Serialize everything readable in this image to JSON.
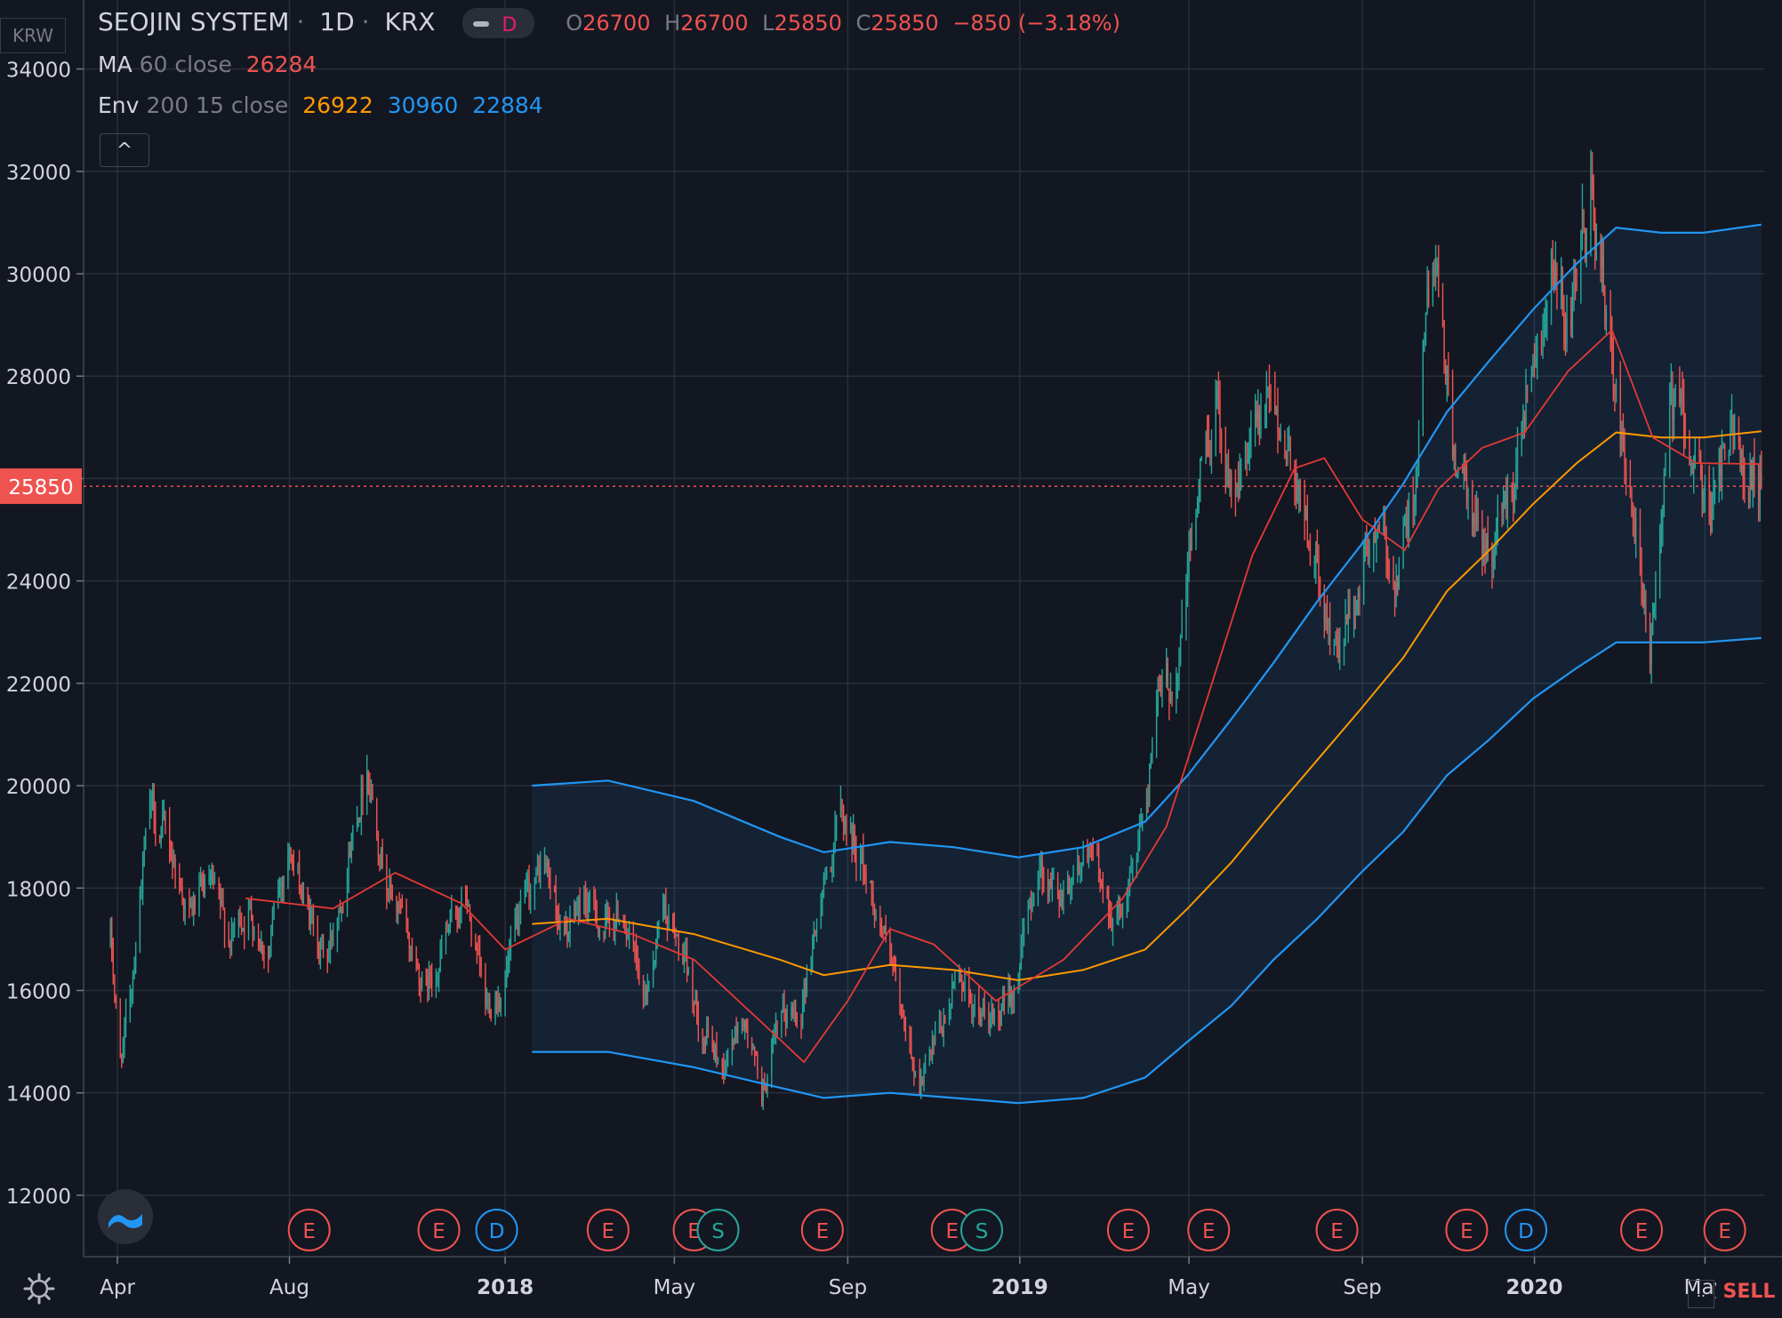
{
  "header": {
    "symbol": "SEOJIN SYSTEM",
    "interval": "1D",
    "exchange": "KRX",
    "sep": "·",
    "pill_label": "D",
    "open_label": "O",
    "open": "26700",
    "high_label": "H",
    "high": "26700",
    "low_label": "L",
    "low": "25850",
    "close_label": "C",
    "close": "25850",
    "change": "−850 (−3.18%)"
  },
  "indicators": {
    "ma_label": "MA",
    "ma_params": "60 close",
    "ma_value": "26284",
    "env_label": "Env",
    "env_params": "200 15 close",
    "env_basis": "26922",
    "env_upper": "30960",
    "env_lower": "22884",
    "collapse_glyph": "^"
  },
  "axis": {
    "currency": "KRW",
    "price_label": "25850",
    "sell_label": "SELL",
    "dots_label": ".."
  },
  "colors": {
    "background": "#131722",
    "grid": "#2a2e39",
    "up": "#26a69a",
    "down": "#ef5350",
    "ma": "#e53935",
    "env_basis": "#ff9800",
    "env_band": "#2196f3",
    "price_line": "#ef5350"
  },
  "icons": [
    "settings-gear-icon",
    "tradingview-logo-icon",
    "chevron-up-icon"
  ],
  "chart_data": {
    "type": "candlestick",
    "ylim": [
      10800,
      35000
    ],
    "yticks": [
      12000,
      14000,
      16000,
      18000,
      20000,
      22000,
      24000,
      26000,
      28000,
      30000,
      32000,
      34000
    ],
    "xlim": [
      "2017-03-08",
      "2020-06-12"
    ],
    "xticks": [
      {
        "label": "Apr",
        "date": "2017-04-01",
        "bold": false
      },
      {
        "label": "Aug",
        "date": "2017-08-01",
        "bold": false
      },
      {
        "label": "2018",
        "date": "2018-01-01",
        "bold": true
      },
      {
        "label": "May",
        "date": "2018-05-01",
        "bold": false
      },
      {
        "label": "Sep",
        "date": "2018-09-01",
        "bold": false
      },
      {
        "label": "2019",
        "date": "2019-01-01",
        "bold": true
      },
      {
        "label": "May",
        "date": "2019-05-01",
        "bold": false
      },
      {
        "label": "Sep",
        "date": "2019-09-01",
        "bold": false
      },
      {
        "label": "2020",
        "date": "2020-01-01",
        "bold": true
      },
      {
        "label": "May",
        "date": "2020-05-01",
        "bold": false
      }
    ],
    "last_price": 25850,
    "close_path": [
      [
        "2017-03-27",
        17000
      ],
      [
        "2017-04-03",
        14600
      ],
      [
        "2017-04-10",
        15800
      ],
      [
        "2017-04-17",
        18000
      ],
      [
        "2017-04-24",
        19500
      ],
      [
        "2017-05-08",
        18800
      ],
      [
        "2017-05-22",
        17500
      ],
      [
        "2017-06-05",
        18000
      ],
      [
        "2017-06-19",
        17000
      ],
      [
        "2017-07-03",
        17600
      ],
      [
        "2017-07-17",
        16800
      ],
      [
        "2017-07-31",
        18800
      ],
      [
        "2017-08-14",
        17500
      ],
      [
        "2017-08-28",
        16600
      ],
      [
        "2017-09-11",
        18600
      ],
      [
        "2017-09-25",
        20500
      ],
      [
        "2017-10-09",
        18200
      ],
      [
        "2017-10-23",
        17000
      ],
      [
        "2017-11-06",
        16000
      ],
      [
        "2017-11-20",
        17000
      ],
      [
        "2017-12-04",
        17800
      ],
      [
        "2017-12-18",
        15600
      ],
      [
        "2017-12-31",
        16200
      ],
      [
        "2018-01-15",
        17600
      ],
      [
        "2018-01-29",
        18500
      ],
      [
        "2018-02-12",
        17000
      ],
      [
        "2018-02-26",
        17800
      ],
      [
        "2018-03-12",
        17200
      ],
      [
        "2018-03-26",
        17600
      ],
      [
        "2018-04-09",
        15600
      ],
      [
        "2018-04-23",
        17800
      ],
      [
        "2018-05-07",
        16500
      ],
      [
        "2018-05-21",
        15300
      ],
      [
        "2018-06-04",
        14500
      ],
      [
        "2018-06-18",
        15500
      ],
      [
        "2018-07-02",
        14000
      ],
      [
        "2018-07-16",
        15300
      ],
      [
        "2018-07-30",
        15800
      ],
      [
        "2018-08-13",
        17800
      ],
      [
        "2018-08-27",
        19500
      ],
      [
        "2018-09-10",
        18600
      ],
      [
        "2018-09-24",
        17400
      ],
      [
        "2018-10-08",
        15500
      ],
      [
        "2018-10-22",
        14200
      ],
      [
        "2018-11-05",
        15000
      ],
      [
        "2018-11-19",
        16400
      ],
      [
        "2018-12-03",
        15600
      ],
      [
        "2018-12-17",
        15200
      ],
      [
        "2018-12-31",
        16400
      ],
      [
        "2019-01-14",
        18500
      ],
      [
        "2019-01-28",
        17900
      ],
      [
        "2019-02-11",
        18600
      ],
      [
        "2019-02-25",
        18300
      ],
      [
        "2019-03-11",
        17400
      ],
      [
        "2019-03-25",
        18700
      ],
      [
        "2019-04-08",
        21500
      ],
      [
        "2019-04-22",
        22200
      ],
      [
        "2019-05-06",
        25500
      ],
      [
        "2019-05-20",
        27500
      ],
      [
        "2019-06-03",
        25800
      ],
      [
        "2019-06-17",
        26800
      ],
      [
        "2019-07-01",
        27300
      ],
      [
        "2019-07-15",
        26300
      ],
      [
        "2019-07-29",
        24300
      ],
      [
        "2019-08-12",
        22500
      ],
      [
        "2019-08-26",
        23500
      ],
      [
        "2019-09-09",
        25000
      ],
      [
        "2019-09-23",
        24000
      ],
      [
        "2019-10-07",
        25800
      ],
      [
        "2019-10-21",
        30500
      ],
      [
        "2019-11-04",
        26500
      ],
      [
        "2019-11-18",
        25000
      ],
      [
        "2019-12-02",
        24600
      ],
      [
        "2019-12-16",
        26000
      ],
      [
        "2019-12-30",
        28500
      ],
      [
        "2020-01-13",
        30000
      ],
      [
        "2020-01-27",
        28600
      ],
      [
        "2020-02-10",
        31800
      ],
      [
        "2020-02-24",
        28300
      ],
      [
        "2020-03-09",
        25300
      ],
      [
        "2020-03-23",
        22500
      ],
      [
        "2020-04-06",
        27500
      ],
      [
        "2020-04-20",
        26800
      ],
      [
        "2020-05-04",
        25200
      ],
      [
        "2020-05-18",
        26800
      ],
      [
        "2020-06-02",
        26400
      ],
      [
        "2020-06-10",
        25850
      ]
    ],
    "ma_path": [
      [
        "2017-07-01",
        17800
      ],
      [
        "2017-09-01",
        17600
      ],
      [
        "2017-10-15",
        18300
      ],
      [
        "2017-12-01",
        17700
      ],
      [
        "2018-01-01",
        16800
      ],
      [
        "2018-02-15",
        17400
      ],
      [
        "2018-04-01",
        17100
      ],
      [
        "2018-05-15",
        16600
      ],
      [
        "2018-07-01",
        15400
      ],
      [
        "2018-08-01",
        14600
      ],
      [
        "2018-09-01",
        15800
      ],
      [
        "2018-10-01",
        17200
      ],
      [
        "2018-11-01",
        16900
      ],
      [
        "2018-12-15",
        15800
      ],
      [
        "2019-02-01",
        16600
      ],
      [
        "2019-03-15",
        17800
      ],
      [
        "2019-04-15",
        19200
      ],
      [
        "2019-05-15",
        21800
      ],
      [
        "2019-06-15",
        24500
      ],
      [
        "2019-07-15",
        26200
      ],
      [
        "2019-08-05",
        26400
      ],
      [
        "2019-09-01",
        25200
      ],
      [
        "2019-10-01",
        24600
      ],
      [
        "2019-10-25",
        25800
      ],
      [
        "2019-11-25",
        26600
      ],
      [
        "2019-12-25",
        26900
      ],
      [
        "2020-01-25",
        28100
      ],
      [
        "2020-02-25",
        28900
      ],
      [
        "2020-03-25",
        26800
      ],
      [
        "2020-04-25",
        26300
      ],
      [
        "2020-06-10",
        26284
      ]
    ],
    "env_basis_path": [
      [
        "2018-01-20",
        17300
      ],
      [
        "2018-03-15",
        17400
      ],
      [
        "2018-05-15",
        17100
      ],
      [
        "2018-07-15",
        16600
      ],
      [
        "2018-08-15",
        16300
      ],
      [
        "2018-10-01",
        16500
      ],
      [
        "2018-11-15",
        16400
      ],
      [
        "2018-12-31",
        16200
      ],
      [
        "2019-02-15",
        16400
      ],
      [
        "2019-03-31",
        16800
      ],
      [
        "2019-04-30",
        17600
      ],
      [
        "2019-05-31",
        18500
      ],
      [
        "2019-06-30",
        19500
      ],
      [
        "2019-07-31",
        20500
      ],
      [
        "2019-08-31",
        21500
      ],
      [
        "2019-09-30",
        22500
      ],
      [
        "2019-10-31",
        23800
      ],
      [
        "2019-11-30",
        24600
      ],
      [
        "2019-12-31",
        25500
      ],
      [
        "2020-01-31",
        26300
      ],
      [
        "2020-02-28",
        26900
      ],
      [
        "2020-03-31",
        26800
      ],
      [
        "2020-04-30",
        26800
      ],
      [
        "2020-06-10",
        26922
      ]
    ],
    "env_upper_path": [
      [
        "2018-01-20",
        20000
      ],
      [
        "2018-03-15",
        20100
      ],
      [
        "2018-05-15",
        19700
      ],
      [
        "2018-07-15",
        19000
      ],
      [
        "2018-08-15",
        18700
      ],
      [
        "2018-10-01",
        18900
      ],
      [
        "2018-11-15",
        18800
      ],
      [
        "2018-12-31",
        18600
      ],
      [
        "2019-02-15",
        18800
      ],
      [
        "2019-03-31",
        19300
      ],
      [
        "2019-04-30",
        20200
      ],
      [
        "2019-05-31",
        21300
      ],
      [
        "2019-06-30",
        22400
      ],
      [
        "2019-07-31",
        23600
      ],
      [
        "2019-08-31",
        24700
      ],
      [
        "2019-09-30",
        25900
      ],
      [
        "2019-10-31",
        27300
      ],
      [
        "2019-11-30",
        28300
      ],
      [
        "2019-12-31",
        29300
      ],
      [
        "2020-01-31",
        30200
      ],
      [
        "2020-02-28",
        30900
      ],
      [
        "2020-03-31",
        30800
      ],
      [
        "2020-04-30",
        30800
      ],
      [
        "2020-06-10",
        30960
      ]
    ],
    "env_lower_path": [
      [
        "2018-01-20",
        14800
      ],
      [
        "2018-03-15",
        14800
      ],
      [
        "2018-05-15",
        14500
      ],
      [
        "2018-07-15",
        14100
      ],
      [
        "2018-08-15",
        13900
      ],
      [
        "2018-10-01",
        14000
      ],
      [
        "2018-11-15",
        13900
      ],
      [
        "2018-12-31",
        13800
      ],
      [
        "2019-02-15",
        13900
      ],
      [
        "2019-03-31",
        14300
      ],
      [
        "2019-04-30",
        15000
      ],
      [
        "2019-05-31",
        15700
      ],
      [
        "2019-06-30",
        16600
      ],
      [
        "2019-07-31",
        17400
      ],
      [
        "2019-08-31",
        18300
      ],
      [
        "2019-09-30",
        19100
      ],
      [
        "2019-10-31",
        20200
      ],
      [
        "2019-11-30",
        20900
      ],
      [
        "2019-12-31",
        21700
      ],
      [
        "2020-01-31",
        22300
      ],
      [
        "2020-02-28",
        22800
      ],
      [
        "2020-03-31",
        22800
      ],
      [
        "2020-04-30",
        22800
      ],
      [
        "2020-06-10",
        22884
      ]
    ],
    "events": [
      {
        "label": "E",
        "date": "2017-08-15",
        "color": "#ef5350"
      },
      {
        "label": "E",
        "date": "2017-11-15",
        "color": "#ef5350"
      },
      {
        "label": "D",
        "date": "2017-12-26",
        "color": "#2196f3"
      },
      {
        "label": "E",
        "date": "2018-03-15",
        "color": "#ef5350"
      },
      {
        "label": "E",
        "date": "2018-05-15",
        "color": "#ef5350"
      },
      {
        "label": "S",
        "date": "2018-06-01",
        "color": "#26a69a"
      },
      {
        "label": "E",
        "date": "2018-08-14",
        "color": "#ef5350"
      },
      {
        "label": "E",
        "date": "2018-11-14",
        "color": "#ef5350"
      },
      {
        "label": "S",
        "date": "2018-12-05",
        "color": "#26a69a"
      },
      {
        "label": "E",
        "date": "2019-03-19",
        "color": "#ef5350"
      },
      {
        "label": "E",
        "date": "2019-05-15",
        "color": "#ef5350"
      },
      {
        "label": "E",
        "date": "2019-08-14",
        "color": "#ef5350"
      },
      {
        "label": "E",
        "date": "2019-11-14",
        "color": "#ef5350"
      },
      {
        "label": "D",
        "date": "2019-12-26",
        "color": "#2196f3"
      },
      {
        "label": "E",
        "date": "2020-03-17",
        "color": "#ef5350"
      },
      {
        "label": "E",
        "date": "2020-05-15",
        "color": "#ef5350"
      }
    ]
  }
}
